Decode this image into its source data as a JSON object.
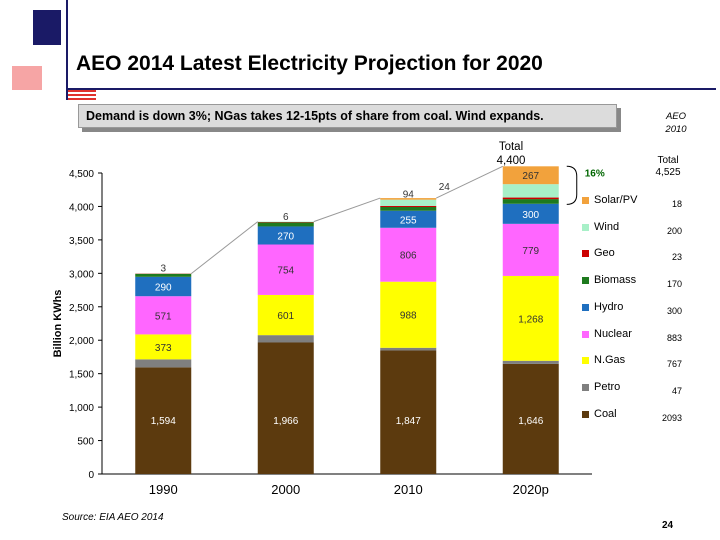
{
  "header": {
    "title": "AEO 2014 Latest Electricity Projection for 2020",
    "subtitle": "Demand is down 3%; NGas takes 12-15pts of share from coal.  Wind expands.",
    "aeo2010_line1": "AEO",
    "aeo2010_line2": "2010",
    "total_2010_line1": "Total",
    "total_2010_line2": "4,400",
    "total_right_line1": "Total",
    "total_right_line2": "4,525",
    "growth_label": "16%"
  },
  "footer": {
    "source": "Source:  EIA AEO 2014",
    "page_number": "24"
  },
  "colors": {
    "Coal": "#5c3a0e",
    "Petro": "#7f7f7f",
    "N.Gas": "#ffff00",
    "Nuclear": "#ff66ff",
    "Hydro": "#1f6fbf",
    "Biomass": "#1e7a1e",
    "Geo": "#cc0000",
    "Wind": "#a8f0c8",
    "Solar/PV": "#f2a23c",
    "accent_blue": "#1a1a66",
    "accent_red": "#e0312c"
  },
  "chart_data": {
    "type": "bar",
    "stacked": true,
    "categories": [
      "1990",
      "2000",
      "2010",
      "2020p"
    ],
    "ylabel": "Billion KWhs",
    "ylim": [
      0,
      4500
    ],
    "yticks": [
      0,
      500,
      1000,
      1500,
      2000,
      2500,
      3000,
      3500,
      4000,
      4500
    ],
    "ytick_labels": [
      "0",
      "500",
      "1,000",
      "1,500",
      "2,000",
      "2,500",
      "3,000",
      "3,500",
      "4,000",
      "4,500"
    ],
    "series": [
      {
        "name": "Coal",
        "values": [
          1594,
          1966,
          1847,
          1646
        ],
        "labels": [
          "1,594",
          "1,966",
          "1,847",
          "1,646"
        ]
      },
      {
        "name": "Petro",
        "values": [
          120,
          110,
          40,
          47
        ],
        "labels": [
          "",
          "",
          "",
          ""
        ]
      },
      {
        "name": "N.Gas",
        "values": [
          373,
          601,
          988,
          1268
        ],
        "labels": [
          "373",
          "601",
          "988",
          "1,268"
        ]
      },
      {
        "name": "Nuclear",
        "values": [
          571,
          754,
          806,
          779
        ],
        "labels": [
          "571",
          "754",
          "806",
          "779"
        ]
      },
      {
        "name": "Hydro",
        "values": [
          290,
          270,
          255,
          300
        ],
        "labels": [
          "290",
          "270",
          "255",
          "300"
        ]
      },
      {
        "name": "Biomass",
        "values": [
          45,
          60,
          56,
          70
        ],
        "labels": [
          "",
          "",
          "",
          ""
        ]
      },
      {
        "name": "Geo",
        "values": [
          3,
          6,
          15,
          23
        ],
        "labels": [
          "3",
          "6",
          "",
          ""
        ]
      },
      {
        "name": "Wind",
        "values": [
          0,
          6,
          94,
          200
        ],
        "labels": [
          "",
          "",
          "94",
          ""
        ]
      },
      {
        "name": "Solar/PV",
        "values": [
          0,
          0,
          24,
          267
        ],
        "labels": [
          "",
          "",
          "24",
          "267"
        ]
      }
    ],
    "legend_position": "right",
    "legend": [
      {
        "name": "Solar/PV",
        "value": "18"
      },
      {
        "name": "Wind",
        "value": "200"
      },
      {
        "name": "Geo",
        "value": "23"
      },
      {
        "name": "Biomass",
        "value": "170"
      },
      {
        "name": "Hydro",
        "value": "300"
      },
      {
        "name": "Nuclear",
        "value": "883"
      },
      {
        "name": "N.Gas",
        "value": "767"
      },
      {
        "name": "Petro",
        "value": "47"
      },
      {
        "name": "Coal",
        "value": "2093"
      }
    ]
  }
}
